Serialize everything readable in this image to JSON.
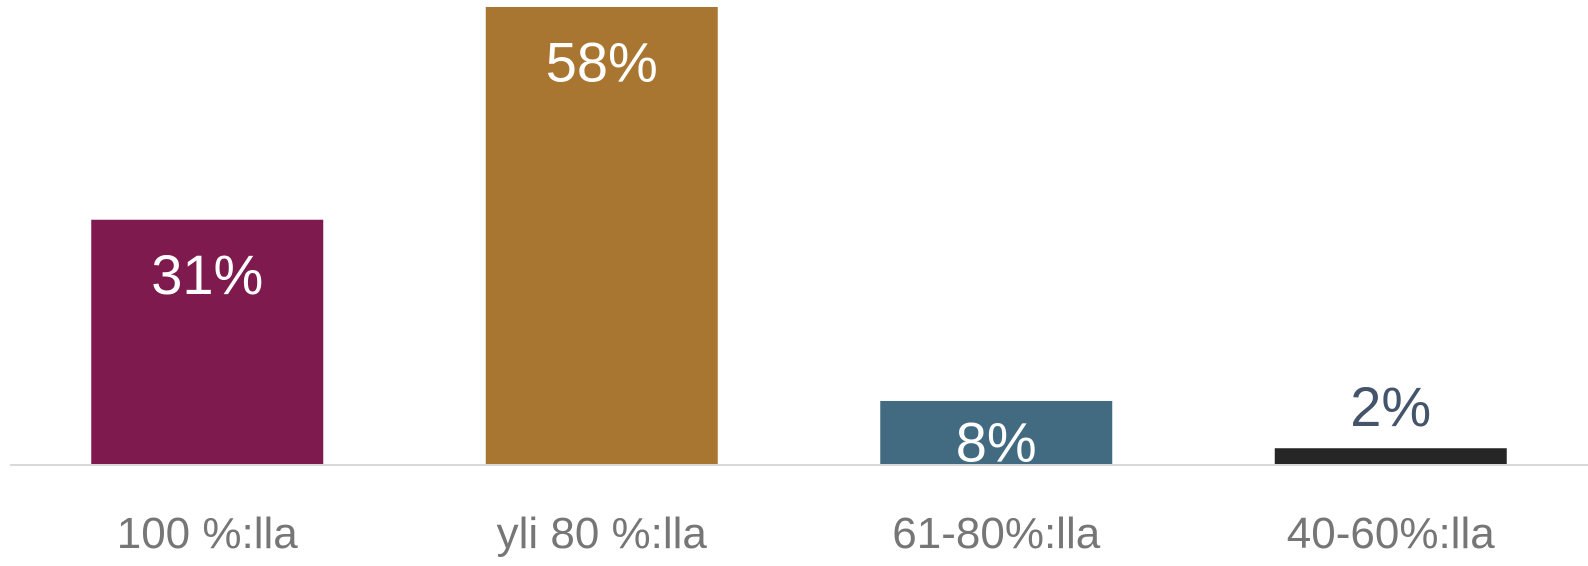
{
  "chart_data": {
    "type": "bar",
    "categories": [
      "100 %:lla",
      "yli 80 %:lla",
      "61-80%:lla",
      "40-60%:lla"
    ],
    "values": [
      31,
      58,
      8,
      2
    ],
    "data_labels": [
      "31%",
      "58%",
      "8%",
      "2%"
    ],
    "colors": [
      "#7e1a4e",
      "#a87630",
      "#426b82",
      "#262626"
    ],
    "label_colors": [
      "#ffffff",
      "#ffffff",
      "#ffffff",
      "#44546a"
    ],
    "baseline_color": "#d9d9d9",
    "category_label_color": "#767676",
    "ylim": [
      0,
      58
    ],
    "grid": false,
    "legend": "none",
    "title": "",
    "xlabel": "",
    "ylabel": ""
  }
}
